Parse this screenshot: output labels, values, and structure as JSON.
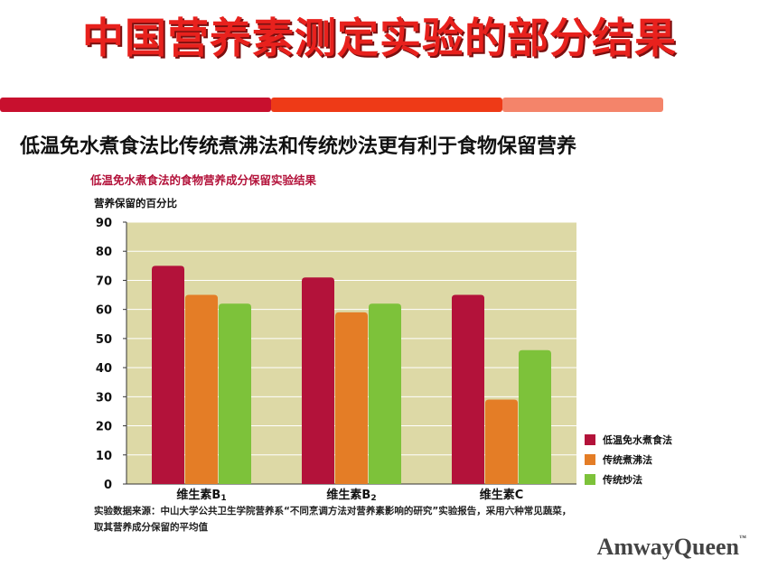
{
  "slide": {
    "title": "中国营养素测定实验的部分结果",
    "headline": "低温免水煮食法比传统煮沸法和传统炒法更有利于食物保留营养"
  },
  "colors": {
    "title_red": "#e8211d",
    "band": [
      "#c8102e",
      "#ee3a17",
      "#f4846a"
    ],
    "plot_background": "#ddd9a6"
  },
  "chart_data": {
    "type": "bar",
    "title": "低温免水煮食法的食物营养成分保留实验结果",
    "ylabel": "营养保留的百分比",
    "xlabel": "",
    "ylim": [
      0,
      90
    ],
    "yticks": [
      0,
      10,
      20,
      30,
      40,
      50,
      60,
      70,
      80,
      90
    ],
    "grid": true,
    "legend_position": "bottom-right, outside plot",
    "categories": [
      {
        "label": "维生素B",
        "sub": "1"
      },
      {
        "label": "维生素B",
        "sub": "2"
      },
      {
        "label": "维生素C",
        "sub": ""
      }
    ],
    "series": [
      {
        "name": "低温免水煮食法",
        "color": "#b3123a",
        "values": [
          75,
          71,
          65
        ]
      },
      {
        "name": "传统煮沸法",
        "color": "#e47d26",
        "values": [
          65,
          59,
          29
        ]
      },
      {
        "name": "传统炒法",
        "color": "#7dc23a",
        "values": [
          62,
          62,
          46
        ]
      }
    ],
    "source_note": "实验数据来源：中山大学公共卫生学院营养系“不同烹调方法对营养素影响的研究”实验报告，采用六种常见蔬菜，取其营养成分保留的平均值"
  },
  "brand": {
    "logo_text": "AmwayQueen",
    "trademark": "™"
  }
}
